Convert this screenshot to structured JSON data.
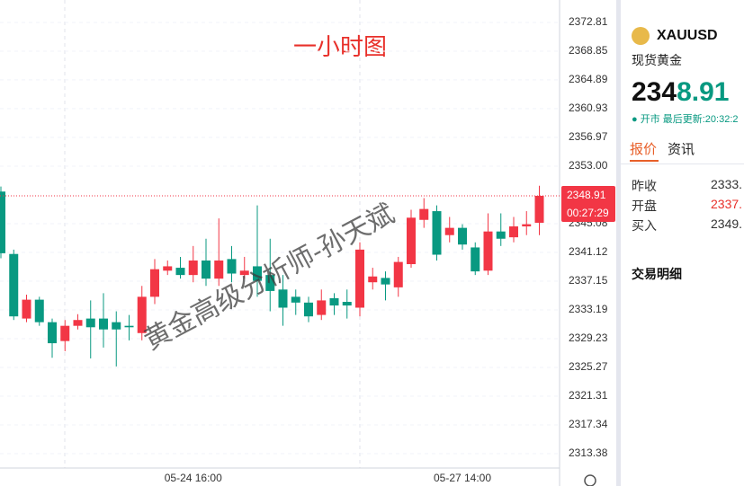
{
  "chart_data": {
    "type": "candlestick",
    "annotation": "一小时图",
    "watermark": "黄金高级分析师-孙天斌",
    "categories": [
      null,
      null,
      null,
      null,
      null,
      null,
      null,
      null,
      null,
      null,
      null,
      null,
      null,
      null,
      null,
      "05-24 16:00",
      null,
      null,
      null,
      null,
      null,
      null,
      null,
      null,
      null,
      null,
      null,
      null,
      null,
      null,
      null,
      null,
      null,
      null,
      null,
      null,
      "05-27 14:00",
      null,
      null,
      null,
      null,
      null,
      null
    ],
    "open": [
      2349.5,
      2340.9,
      2332.0,
      2334.6,
      2331.5,
      2328.9,
      2331.0,
      2332.0,
      2332.0,
      2331.5,
      2331.0,
      2330.0,
      2335.0,
      2338.6,
      2339.0,
      2338.0,
      2340.0,
      2337.5,
      2340.2,
      2338.0,
      2339.2,
      2338.0,
      2336.0,
      2335.0,
      2334.2,
      2332.5,
      2334.8,
      2334.3,
      2333.5,
      2337.0,
      2337.6,
      2336.3,
      2339.5,
      2345.6,
      2346.8,
      2343.5,
      2344.5,
      2341.8,
      2338.6,
      2344.0,
      2343.2,
      2344.7,
      2345.2
    ],
    "high": [
      2350.2,
      2341.5,
      2335.3,
      2335.0,
      2332.0,
      2331.8,
      2332.6,
      2334.5,
      2335.5,
      2333.0,
      2332.5,
      2336.5,
      2340.2,
      2340.0,
      2340.5,
      2342.0,
      2343.0,
      2345.8,
      2342.0,
      2340.5,
      2347.6,
      2343.0,
      2338.0,
      2336.0,
      2335.0,
      2336.0,
      2335.5,
      2336.0,
      2342.5,
      2339.0,
      2338.5,
      2340.5,
      2347.0,
      2348.6,
      2347.6,
      2346.0,
      2345.0,
      2342.5,
      2346.5,
      2346.5,
      2346.0,
      2346.8,
      2350.3
    ],
    "low": [
      2340.3,
      2331.8,
      2331.5,
      2331.0,
      2326.6,
      2327.5,
      2330.5,
      2326.5,
      2328.0,
      2325.4,
      2329.0,
      2329.0,
      2334.0,
      2338.0,
      2337.5,
      2337.0,
      2336.5,
      2336.5,
      2337.0,
      2337.5,
      2335.0,
      2333.0,
      2331.0,
      2332.5,
      2331.5,
      2331.8,
      2332.5,
      2332.0,
      2332.3,
      2336.0,
      2334.5,
      2335.0,
      2339.0,
      2344.5,
      2340.0,
      2342.5,
      2341.5,
      2338.0,
      2338.0,
      2342.0,
      2342.5,
      2343.5,
      2343.5
    ],
    "close": [
      2341.0,
      2332.3,
      2334.6,
      2331.5,
      2328.6,
      2331.0,
      2331.8,
      2330.8,
      2330.5,
      2330.5,
      2330.8,
      2335.0,
      2338.8,
      2339.2,
      2338.0,
      2340.0,
      2337.5,
      2340.0,
      2338.2,
      2338.6,
      2337.2,
      2335.8,
      2333.5,
      2334.2,
      2332.3,
      2334.5,
      2333.8,
      2333.8,
      2341.5,
      2337.8,
      2336.7,
      2339.8,
      2345.9,
      2347.1,
      2340.8,
      2344.5,
      2342.2,
      2338.5,
      2344.0,
      2343.0,
      2344.7,
      2345.0,
      2348.91
    ],
    "up_color": "#f23645",
    "down_color": "#089981",
    "ylim": [
      2311.4,
      2375.9
    ],
    "yticks": [
      2313.38,
      2317.34,
      2321.31,
      2325.27,
      2329.23,
      2333.19,
      2337.15,
      2341.12,
      2345.08,
      {
        "value": 2353.0,
        "label": "2353.00"
      },
      2356.97,
      2360.93,
      2364.89,
      2368.85,
      2372.81
    ],
    "grid": true,
    "last_price": 2348.91,
    "countdown": "00:27:29"
  },
  "panel": {
    "symbol": "XAUUSD",
    "name": "现货黄金",
    "price_int": "234",
    "price_frac": "8.91",
    "status": "● 开市 最后更新:20:32:2",
    "tabs": [
      "报价",
      "资讯"
    ],
    "rows": [
      [
        "昨收",
        "2333."
      ],
      [
        "开盘",
        "2337."
      ],
      [
        "买入",
        "2349."
      ]
    ],
    "section": "交易明细"
  }
}
